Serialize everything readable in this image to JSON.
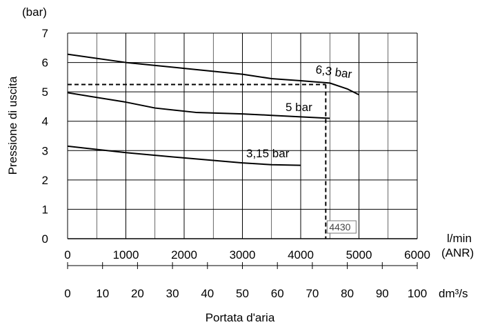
{
  "chart_data": {
    "type": "line",
    "ylabel": "Pressione di uscita",
    "yunit": "(bar)",
    "xlabel": "Portata d'aria",
    "x_unit_primary": [
      "l/min",
      "(ANR)"
    ],
    "x_unit_secondary": "dm³/s",
    "ylim": [
      0,
      7
    ],
    "xlim": [
      0,
      6000
    ],
    "xlim_secondary": [
      0,
      100
    ],
    "y_ticks": [
      "0",
      "1",
      "2",
      "3",
      "4",
      "5",
      "6",
      "7"
    ],
    "x_ticks": [
      "0",
      "1000",
      "2000",
      "3000",
      "4000",
      "5000",
      "6000"
    ],
    "x_ticks_secondary": [
      "0",
      "10",
      "20",
      "30",
      "40",
      "50",
      "60",
      "70",
      "80",
      "90",
      "100"
    ],
    "grid": true,
    "series": [
      {
        "name": "6,3 bar",
        "color": "#000000",
        "x": [
          0,
          1000,
          2000,
          3000,
          3500,
          4000,
          4500,
          4800,
          5000
        ],
        "y": [
          6.28,
          6.0,
          5.8,
          5.6,
          5.45,
          5.38,
          5.3,
          5.1,
          4.9
        ]
      },
      {
        "name": "5 bar",
        "color": "#000000",
        "x": [
          0,
          1000,
          1500,
          2200,
          3000,
          3500,
          4000,
          4500
        ],
        "y": [
          4.97,
          4.65,
          4.45,
          4.3,
          4.25,
          4.2,
          4.15,
          4.1
        ]
      },
      {
        "name": "3,15 bar",
        "color": "#000000",
        "x": [
          0,
          1000,
          2000,
          3000,
          3500,
          4000
        ],
        "y": [
          3.15,
          2.93,
          2.75,
          2.58,
          2.52,
          2.5
        ]
      }
    ],
    "reference": {
      "x": 4430,
      "y": 5.25,
      "label": "4430"
    }
  }
}
